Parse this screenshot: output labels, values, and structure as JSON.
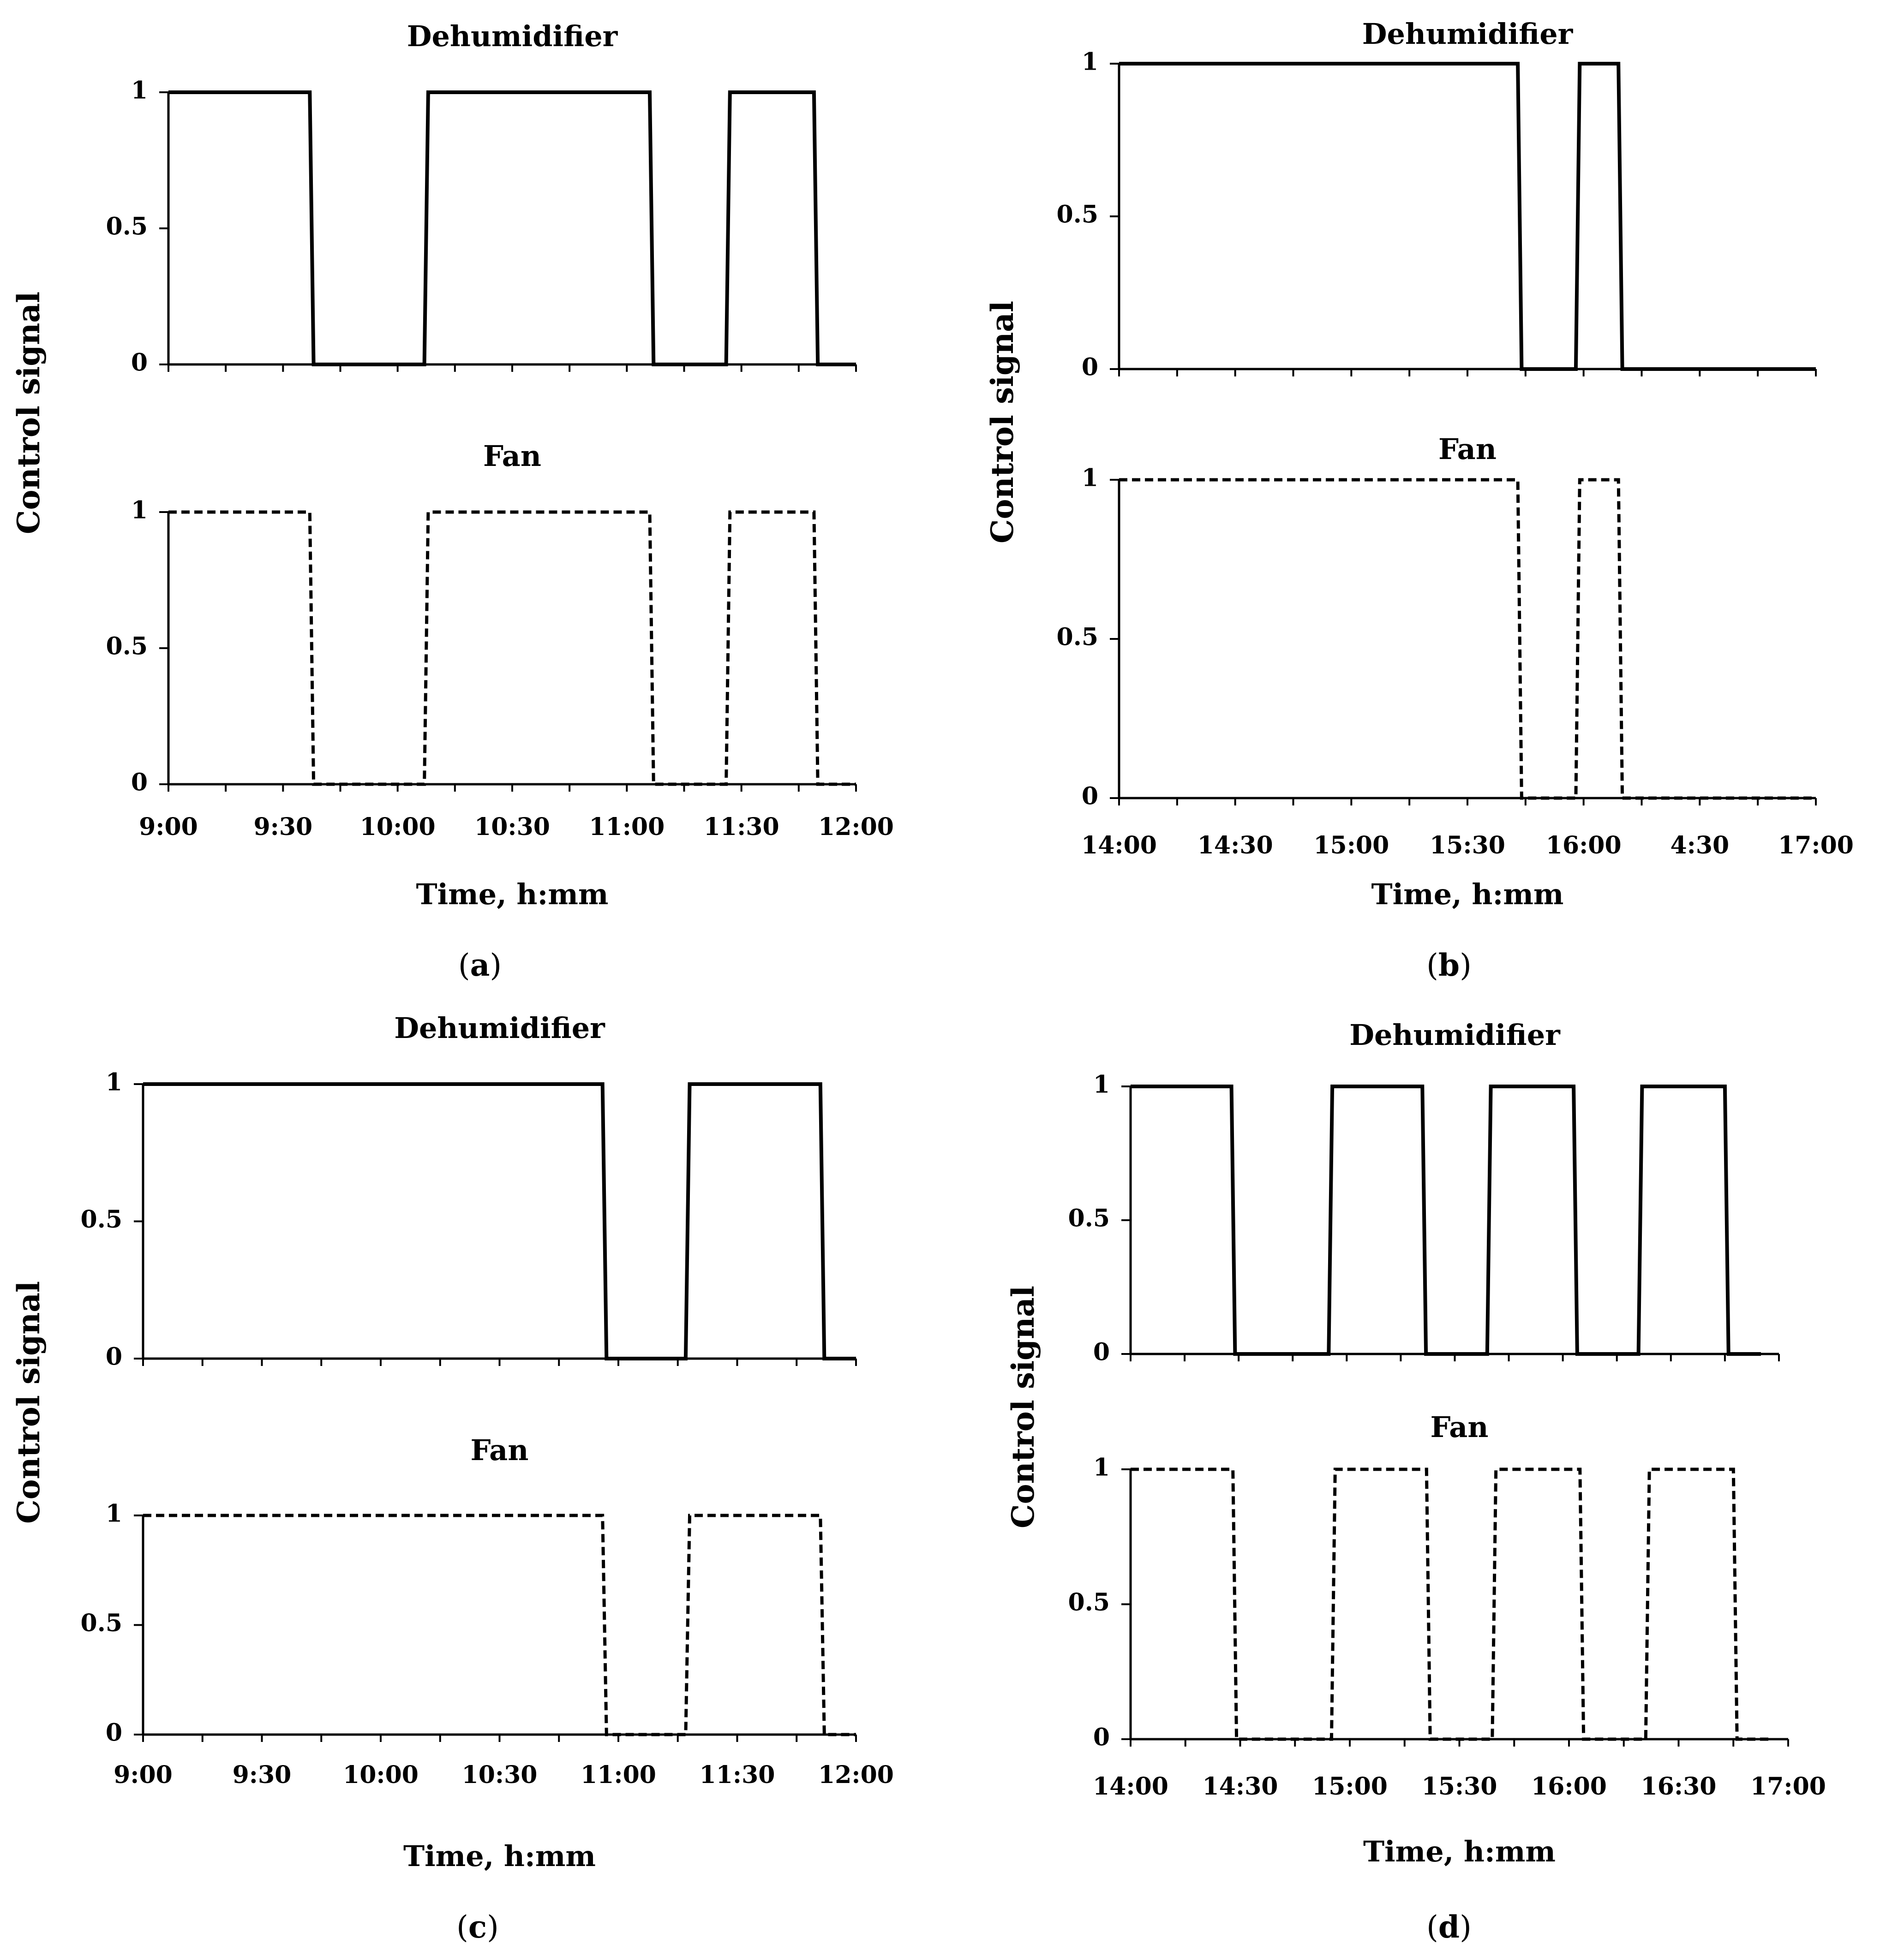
{
  "figure": {
    "panels": [
      {
        "id": "a",
        "label_open": "(",
        "label_letter": "a",
        "label_close": ")",
        "ylabel": "Control signal",
        "xlabel": "Time, h:mm"
      },
      {
        "id": "b",
        "label_open": "(",
        "label_letter": "b",
        "label_close": ")",
        "ylabel": "Control signal",
        "xlabel": "Time, h:mm"
      },
      {
        "id": "c",
        "label_open": "(",
        "label_letter": "c",
        "label_close": ")",
        "ylabel": "Control signal",
        "xlabel": "Time, h:mm"
      },
      {
        "id": "d",
        "label_open": "(",
        "label_letter": "d",
        "label_close": ")",
        "ylabel": "Control signal",
        "xlabel": "Time, h:mm"
      }
    ]
  },
  "chart_data": [
    {
      "panel": "a",
      "type": "line",
      "title": "Dehumidifier",
      "line_style": "solid",
      "ylabel": "Control signal",
      "xlabel": "Time, h:mm",
      "ylim": [
        0,
        1
      ],
      "yticks": [
        "0",
        "0.5",
        "1"
      ],
      "xlim": [
        540,
        720
      ],
      "xtick_labels": [
        "9:00",
        "9:30",
        "10:00",
        "10:30",
        "11:00",
        "11:30",
        "12:00"
      ],
      "x": [
        540,
        577,
        578,
        607,
        608,
        666,
        667,
        686,
        687,
        709,
        710,
        720
      ],
      "y": [
        1,
        1,
        0,
        0,
        1,
        1,
        0,
        0,
        1,
        1,
        0,
        0
      ]
    },
    {
      "panel": "a",
      "type": "line",
      "title": "Fan",
      "line_style": "dashed",
      "ylabel": "Control signal",
      "xlabel": "Time, h:mm",
      "ylim": [
        0,
        1
      ],
      "yticks": [
        "0",
        "0.5",
        "1"
      ],
      "xlim": [
        540,
        720
      ],
      "xtick_labels": [
        "9:00",
        "9:30",
        "10:00",
        "10:30",
        "11:00",
        "11:30",
        "12:00"
      ],
      "x": [
        540,
        577,
        578,
        607,
        608,
        666,
        667,
        686,
        687,
        709,
        710,
        720
      ],
      "y": [
        1,
        1,
        0,
        0,
        1,
        1,
        0,
        0,
        1,
        1,
        0,
        0
      ]
    },
    {
      "panel": "b",
      "type": "line",
      "title": "Dehumidifier",
      "line_style": "solid",
      "ylabel": "Control signal",
      "xlabel": "Time, h:mm",
      "ylim": [
        0,
        1
      ],
      "yticks": [
        "0",
        "0.5",
        "1"
      ],
      "xlim": [
        840,
        1020
      ],
      "xtick_labels": [
        "14:00",
        "14:30",
        "15:00",
        "15:30",
        "16:00",
        "4:30",
        "17:00"
      ],
      "x": [
        840,
        943,
        944,
        958,
        959,
        969,
        970,
        1020
      ],
      "y": [
        1,
        1,
        0,
        0,
        1,
        1,
        0,
        0
      ]
    },
    {
      "panel": "b",
      "type": "line",
      "title": "Fan",
      "line_style": "dashed",
      "ylabel": "Control signal",
      "xlabel": "Time, h:mm",
      "ylim": [
        0,
        1
      ],
      "yticks": [
        "0",
        "0.5",
        "1"
      ],
      "xlim": [
        840,
        1020
      ],
      "xtick_labels": [
        "14:00",
        "14:30",
        "15:00",
        "15:30",
        "16:00",
        "4:30",
        "17:00"
      ],
      "x": [
        840,
        943,
        944,
        958,
        959,
        969,
        970,
        1020
      ],
      "y": [
        1,
        1,
        0,
        0,
        1,
        1,
        0,
        0
      ]
    },
    {
      "panel": "c",
      "type": "line",
      "title": "Dehumidifier",
      "line_style": "solid",
      "ylabel": "Control signal",
      "xlabel": "Time, h:mm",
      "ylim": [
        0,
        1
      ],
      "yticks": [
        "0",
        "0.5",
        "1"
      ],
      "xlim": [
        540,
        720
      ],
      "xtick_labels": [
        "9:00",
        "9:30",
        "10:00",
        "10:30",
        "11:00",
        "11:30",
        "12:00"
      ],
      "x": [
        540,
        656,
        657,
        677,
        678,
        711,
        712,
        720
      ],
      "y": [
        1,
        1,
        0,
        0,
        1,
        1,
        0,
        0
      ]
    },
    {
      "panel": "c",
      "type": "line",
      "title": "Fan",
      "line_style": "dashed",
      "ylabel": "Control signal",
      "xlabel": "Time, h:mm",
      "ylim": [
        0,
        1
      ],
      "yticks": [
        "0",
        "0.5",
        "1"
      ],
      "xlim": [
        540,
        720
      ],
      "xtick_labels": [
        "9:00",
        "9:30",
        "10:00",
        "10:30",
        "11:00",
        "11:30",
        "12:00"
      ],
      "x": [
        540,
        656,
        657,
        677,
        678,
        711,
        712,
        720
      ],
      "y": [
        1,
        1,
        0,
        0,
        1,
        1,
        0,
        0
      ]
    },
    {
      "panel": "d",
      "type": "line",
      "title": "Dehumidifier",
      "line_style": "solid",
      "ylabel": "Control signal",
      "xlabel": "Time, h:mm",
      "ylim": [
        0,
        1
      ],
      "yticks": [
        "0",
        "0.5",
        "1"
      ],
      "xlim": [
        840,
        1020
      ],
      "xtick_labels": [
        "14:00",
        "14:30",
        "15:00",
        "15:30",
        "16:00",
        "16:30",
        "17:00"
      ],
      "x": [
        840,
        868,
        869,
        895,
        896,
        921,
        922,
        939,
        940,
        963,
        964,
        981,
        982,
        1005,
        1006,
        1015
      ],
      "y": [
        1,
        1,
        0,
        0,
        1,
        1,
        0,
        0,
        1,
        1,
        0,
        0,
        1,
        1,
        0,
        0
      ]
    },
    {
      "panel": "d",
      "type": "line",
      "title": "Fan",
      "line_style": "dashed",
      "ylabel": "Control signal",
      "xlabel": "Time, h:mm",
      "ylim": [
        0,
        1
      ],
      "yticks": [
        "0",
        "0.5",
        "1"
      ],
      "xlim": [
        840,
        1020
      ],
      "xtick_labels": [
        "14:00",
        "14:30",
        "15:00",
        "15:30",
        "16:00",
        "16:30",
        "17:00"
      ],
      "x": [
        840,
        868,
        869,
        895,
        896,
        921,
        922,
        939,
        940,
        963,
        964,
        981,
        982,
        1005,
        1006,
        1015
      ],
      "y": [
        1,
        1,
        0,
        0,
        1,
        1,
        0,
        0,
        1,
        1,
        0,
        0,
        1,
        1,
        0,
        0
      ]
    }
  ]
}
